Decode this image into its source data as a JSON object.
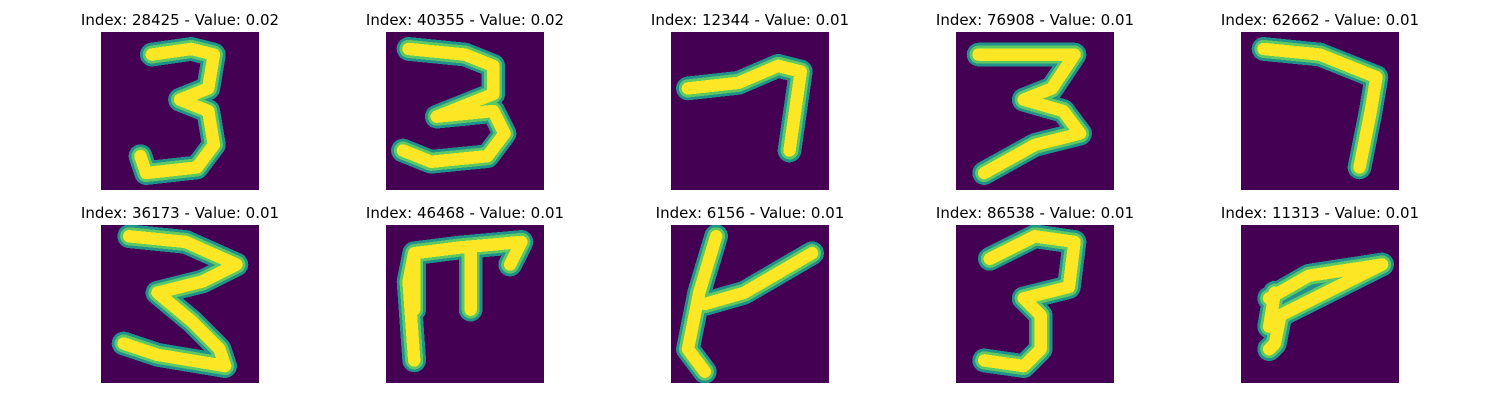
{
  "colors": {
    "background": "#440154",
    "edge": "#21918c",
    "mid": "#5ec962",
    "core": "#fde725"
  },
  "panels": [
    {
      "title": "Index: 28425 - Value: 0.02",
      "glyph": "3"
    },
    {
      "title": "Index: 40355 - Value: 0.02",
      "glyph": "3"
    },
    {
      "title": "Index: 12344 - Value: 0.01",
      "glyph": "7"
    },
    {
      "title": "Index: 76908 - Value: 0.01",
      "glyph": "3"
    },
    {
      "title": "Index: 62662 - Value: 0.01",
      "glyph": "7"
    },
    {
      "title": "Index: 36173 - Value: 0.01",
      "glyph": "3"
    },
    {
      "title": "Index: 46468 - Value: 0.01",
      "glyph": "7"
    },
    {
      "title": "Index: 6156 - Value: 0.01",
      "glyph": "4"
    },
    {
      "title": "Index: 86538 - Value: 0.01",
      "glyph": "3"
    },
    {
      "title": "Index: 11313 - Value: 0.01",
      "glyph": "7"
    }
  ]
}
